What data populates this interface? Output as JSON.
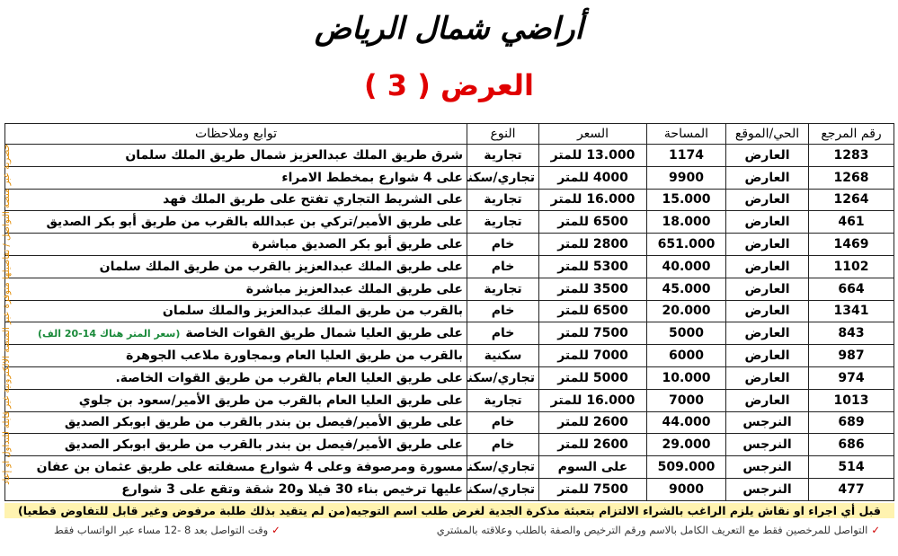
{
  "header": {
    "title": "أراضي شمال الرياض",
    "subtitle": "العرض ( 3 )"
  },
  "table": {
    "headers": [
      "رقم المرجع",
      "الحي/الموقع",
      "المساحة",
      "السعر",
      "النوع",
      "توابع وملاحظات"
    ],
    "rows": [
      [
        "1283",
        "العارض",
        "1174",
        "13.000 للمتر",
        "تجارية",
        "شرق طريق الملك عبدالعزيز شمال طريق الملك سلمان"
      ],
      [
        "1268",
        "العارض",
        "9900",
        "4000 للمتر",
        "تجاري/سكني",
        "على 4 شوارع بمخطط الامراء"
      ],
      [
        "1264",
        "العارض",
        "15.000",
        "16.000 للمتر",
        "تجارية",
        "على الشريط التجاري تفتح على طريق الملك فهد"
      ],
      [
        "461",
        "العارض",
        "18.000",
        "6500 للمتر",
        "تجارية",
        "على طريق الأمير/تركي بن عبدالله بالقرب من طريق أبو بكر الصديق"
      ],
      [
        "1469",
        "العارض",
        "651.000",
        "2800 للمتر",
        "خام",
        "على طريق أبو بكر الصديق مباشرة"
      ],
      [
        "1102",
        "العارض",
        "40.000",
        "5300 للمتر",
        "خام",
        "على طريق الملك عبدالعزيز بالقرب من طريق الملك سلمان"
      ],
      [
        "664",
        "العارض",
        "45.000",
        "3500 للمتر",
        "تجارية",
        "على طريق الملك عبدالعزيز مباشرة"
      ],
      [
        "1341",
        "العارض",
        "20.000",
        "6500 للمتر",
        "خام",
        "بالقرب من طريق الملك عبدالعزيز والملك سلمان"
      ],
      [
        "843",
        "العارض",
        "5000",
        "7500 للمتر",
        "خام",
        "على طريق العليا شمال طريق القوات الخاصة"
      ],
      [
        "987",
        "العارض",
        "6000",
        "7000 للمتر",
        "سكنية",
        "بالقرب من طريق العليا العام وبمجاورة ملاعب الجوهرة"
      ],
      [
        "974",
        "العارض",
        "10.000",
        "5000 للمتر",
        "تجاري/سكني",
        "على طريق العليا العام بالقرب من طريق القوات الخاصة."
      ],
      [
        "1013",
        "العارض",
        "7000",
        "16.000 للمتر",
        "تجارية",
        "على طريق العليا العام بالقرب من طريق الأمير/سعود بن جلوي"
      ],
      [
        "689",
        "النرجس",
        "44.000",
        "2600 للمتر",
        "خام",
        "على طريق الأمير/فيصل بن بندر بالقرب من طريق ابوبكر الصديق"
      ],
      [
        "686",
        "النرجس",
        "29.000",
        "2600 للمتر",
        "خام",
        "على طريق الأمير/فيصل بن بندر بالقرب من طريق ابوبكر الصديق"
      ],
      [
        "514",
        "النرجس",
        "509.000",
        "على السوم",
        "تجاري/سكني",
        "مسورة ومرصوفة وعلى 4 شوارع مسفلته على طريق عثمان بن عفان"
      ],
      [
        "477",
        "النرجس",
        "9000",
        "7500 للمتر",
        "تجاري/سكني",
        "عليها ترخيص بناء 30 فيلا و20 شقة وتقع على 3 شوارع"
      ]
    ],
    "row_note": {
      "row": 8,
      "text": "(سعر المتر هناك 14-20 الف)"
    }
  },
  "footer": {
    "warning": "قبل أي اجراء او نقاش يلزم الراغب بالشراء الالتزام بتعبئة مذكرة الجدية لغرض طلب اسم التوجيه(من لم يتقيد بذلك طلبة مرفوض وغير قابل للتفاوض قطعيا)",
    "contact_rule": "التواصل للمرخصين فقط مع التعريف الكامل بالاسم ورقم الترخيص والصفة بالطلب وعلاقته بالمشتري",
    "contact_time": "وقت التواصل بعد 8 -12 مساء عبر الواتساب فقط"
  },
  "side_note": "حصرية عبر منصة التواصل / تفاصيلها متوفرة عبر المنصة الالكترونية غير قابلة للتداول او إعادة النشر دون اذن مسبق"
}
